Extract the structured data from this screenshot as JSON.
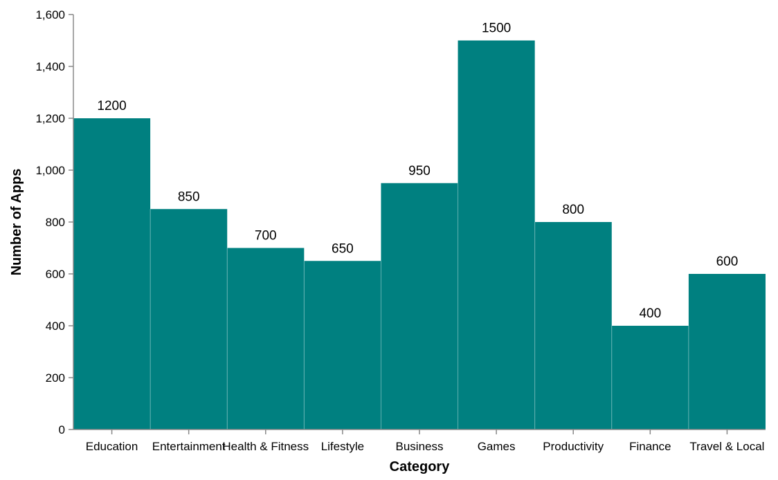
{
  "chart_data": {
    "type": "bar",
    "title": "",
    "xlabel": "Category",
    "ylabel": "Number of Apps",
    "categories": [
      "Education",
      "Entertainment",
      "Health & Fitness",
      "Lifestyle",
      "Business",
      "Games",
      "Productivity",
      "Finance",
      "Travel & Local"
    ],
    "values": [
      1200,
      850,
      700,
      650,
      950,
      1500,
      800,
      400,
      600
    ],
    "data_labels": [
      "1200",
      "850",
      "700",
      "650",
      "950",
      "1500",
      "800",
      "400",
      "600"
    ],
    "ylim": [
      0,
      1600
    ],
    "y_ticks": [
      0,
      200,
      400,
      600,
      800,
      1000,
      1200,
      1400,
      1600
    ],
    "y_tick_labels": [
      "0",
      "200",
      "400",
      "600",
      "800",
      "1,000",
      "1,200",
      "1,400",
      "1,600"
    ],
    "grid": false,
    "legend": "none",
    "bar_color": "#008080"
  }
}
